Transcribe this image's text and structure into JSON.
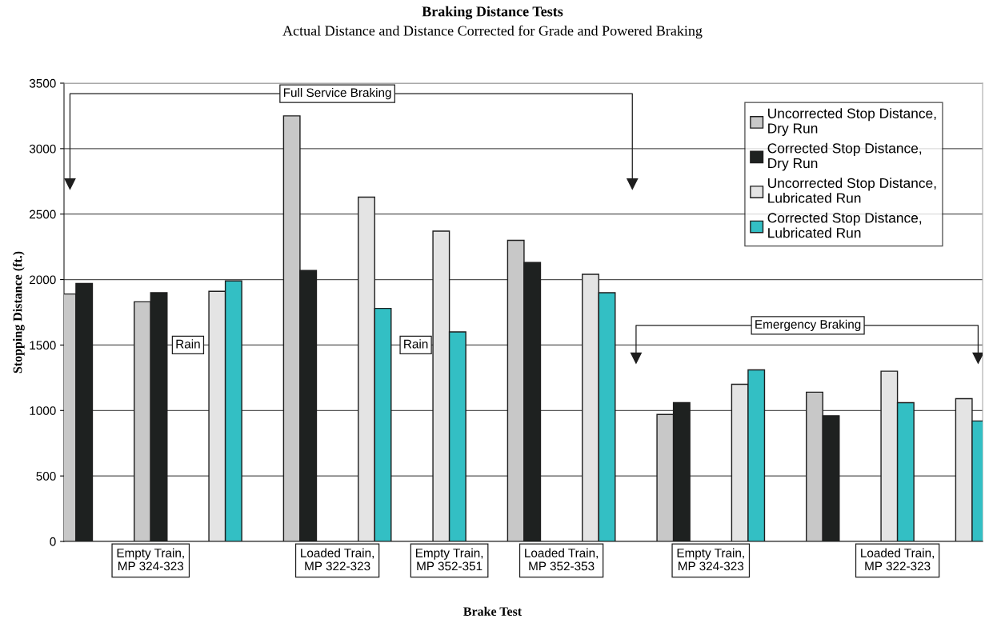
{
  "chart_data": {
    "type": "bar",
    "title": "Braking Distance Tests",
    "subtitle": "Actual Distance and Distance Corrected for Grade and Powered Braking",
    "xlabel": "Brake Test",
    "ylabel": "Stopping Distance (ft.)",
    "categories": [
      null,
      null,
      null,
      null,
      null,
      null,
      null,
      null,
      null,
      null,
      null,
      null,
      null
    ],
    "series": [
      {
        "name": "Uncorrected Stop Distance,\nDry Run",
        "color": "#c8c8c8",
        "values": [
          1890,
          1830,
          null,
          3250,
          null,
          null,
          2300,
          null,
          970,
          null,
          1140,
          null,
          null
        ]
      },
      {
        "name": "Corrected Stop Distance,\nDry Run",
        "color": "#1e2120",
        "values": [
          1970,
          1900,
          null,
          2070,
          null,
          null,
          2130,
          null,
          1060,
          null,
          960,
          null,
          null
        ]
      },
      {
        "name": "Uncorrected Stop Distance,\nLubricated Run",
        "color": "#e4e4e4",
        "values": [
          null,
          null,
          1910,
          null,
          2630,
          2370,
          null,
          2040,
          null,
          1200,
          null,
          1300,
          1090
        ]
      },
      {
        "name": "Corrected Stop Distance,\nLubricated Run",
        "color": "#33bfc4",
        "values": [
          null,
          null,
          1990,
          null,
          1780,
          1600,
          null,
          1900,
          null,
          1310,
          null,
          1060,
          920
        ]
      }
    ],
    "ylim": [
      0,
      3500
    ],
    "yticks": [
      0,
      500,
      1000,
      1500,
      2000,
      2500,
      3000,
      3500
    ],
    "grid": "y",
    "legend": "top right",
    "annotations": [
      "Full Service Braking",
      "Emergency Braking",
      "Rain",
      "Rain",
      "Empty Train,\nMP 324-323",
      "Loaded Train,\nMP 322-323",
      "Empty Train,\nMP 352-351",
      "Loaded Train,\nMP 352-353",
      "Empty Train,\nMP 324-323",
      "Loaded Train,\nMP 322-323"
    ]
  }
}
